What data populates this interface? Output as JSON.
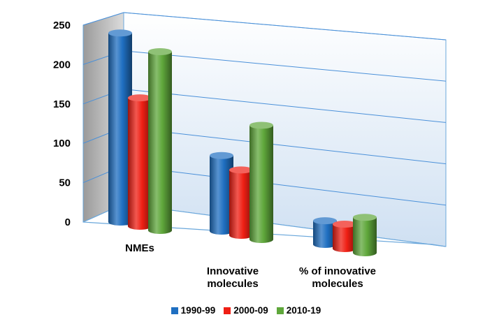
{
  "chart_data": {
    "type": "bar",
    "style": "3d-cylinder",
    "categories": [
      "NMEs",
      "Innovative molecules",
      "% of innovative molecules"
    ],
    "category_lines": [
      [
        "NMEs"
      ],
      [
        "Innovative",
        "molecules"
      ],
      [
        "% of innovative",
        "molecules"
      ]
    ],
    "series": [
      {
        "name": "1990-99",
        "color": "#1f6fc1",
        "values": [
          240,
          96,
          30
        ]
      },
      {
        "name": "2000-09",
        "color": "#ef1f14",
        "values": [
          163,
          83,
          31
        ]
      },
      {
        "name": "2010-19",
        "color": "#5fa73b",
        "values": [
          227,
          145,
          45
        ]
      }
    ],
    "ylim": [
      0,
      250
    ],
    "yticks": [
      0,
      50,
      100,
      150,
      200,
      250
    ],
    "grid": true,
    "legend_position": "bottom"
  }
}
